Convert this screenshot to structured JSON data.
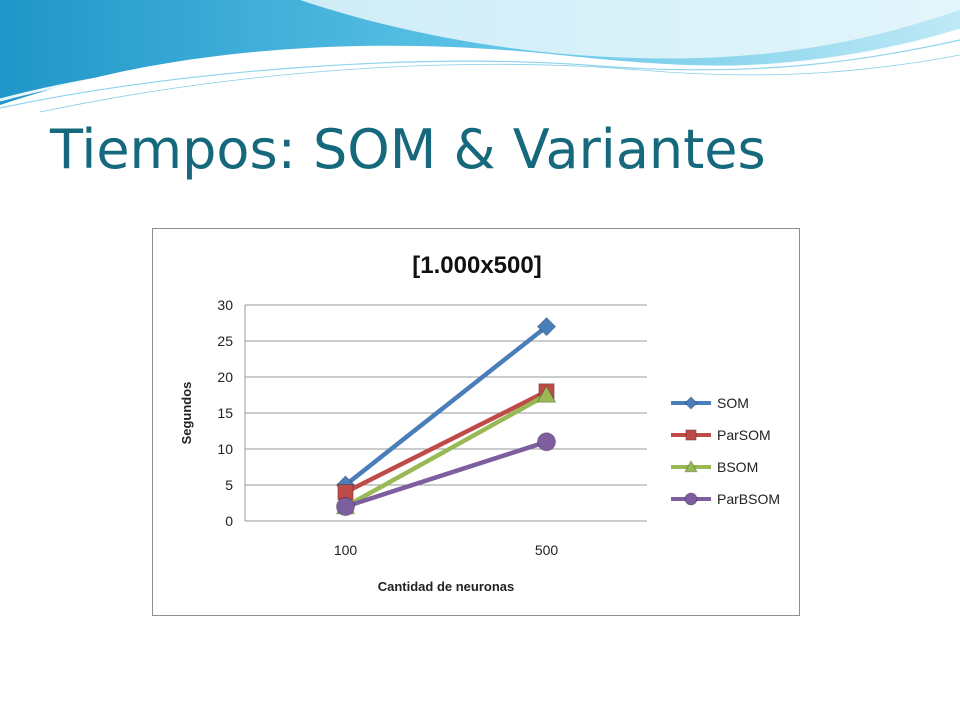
{
  "slide": {
    "title": "Tiempos: SOM & Variantes"
  },
  "colors": {
    "title": "#16697c",
    "wave_dark": "#2a9fd0",
    "wave_light": "#a9dff1"
  },
  "chart_data": {
    "type": "line",
    "title": "[1.000x500]",
    "xlabel": "Cantidad de neuronas",
    "ylabel": "Segundos",
    "categories": [
      "100",
      "500"
    ],
    "ylim": [
      0,
      30
    ],
    "yticks": [
      0,
      5,
      10,
      15,
      20,
      25,
      30
    ],
    "grid": true,
    "legend": "right",
    "series": [
      {
        "name": "SOM",
        "values": [
          5,
          27
        ],
        "color": "#4a7ebb",
        "marker": "diamond"
      },
      {
        "name": "ParSOM",
        "values": [
          4,
          18
        ],
        "color": "#be4b48",
        "marker": "square"
      },
      {
        "name": "BSOM",
        "values": [
          2,
          17.5
        ],
        "color": "#98b954",
        "marker": "triangle"
      },
      {
        "name": "ParBSOM",
        "values": [
          2,
          11
        ],
        "color": "#7d5fa0",
        "marker": "circle"
      }
    ]
  }
}
